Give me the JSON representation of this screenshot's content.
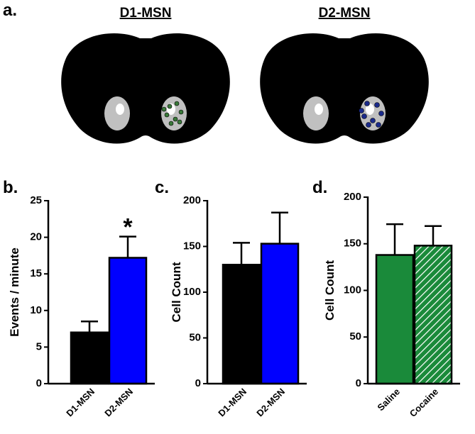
{
  "figure_a": {
    "label": "a.",
    "titles": [
      "D1-MSN",
      "D2-MSN"
    ]
  },
  "chart_data": [
    {
      "type": "bar",
      "panel": "b.",
      "ylabel": "Events / minute",
      "categories": [
        "D1-MSN",
        "D2-MSN"
      ],
      "values": [
        7.0,
        17.2
      ],
      "errors": [
        1.5,
        2.9
      ],
      "colors": [
        "#000000",
        "#0000ff"
      ],
      "patterns": [
        "solid",
        "solid"
      ],
      "ylim": [
        0,
        25
      ],
      "yticks": [
        0,
        5,
        10,
        15,
        20,
        25
      ],
      "annotation": "*"
    },
    {
      "type": "bar",
      "panel": "c.",
      "ylabel": "Cell Count",
      "categories": [
        "D1-MSN",
        "D2-MSN"
      ],
      "values": [
        130,
        153
      ],
      "errors": [
        24,
        34
      ],
      "colors": [
        "#000000",
        "#0000ff"
      ],
      "patterns": [
        "solid",
        "solid"
      ],
      "ylim": [
        0,
        200
      ],
      "yticks": [
        0,
        50,
        100,
        150,
        200
      ]
    },
    {
      "type": "bar",
      "panel": "d.",
      "ylabel": "Cell Count",
      "categories": [
        "Saline",
        "Cocaine"
      ],
      "values": [
        138,
        148
      ],
      "errors": [
        33,
        21
      ],
      "colors": [
        "#1a8a3a",
        "#1a8a3a"
      ],
      "patterns": [
        "solid",
        "hatch"
      ],
      "ylim": [
        0,
        200
      ],
      "yticks": [
        0,
        50,
        100,
        150,
        200
      ]
    }
  ]
}
